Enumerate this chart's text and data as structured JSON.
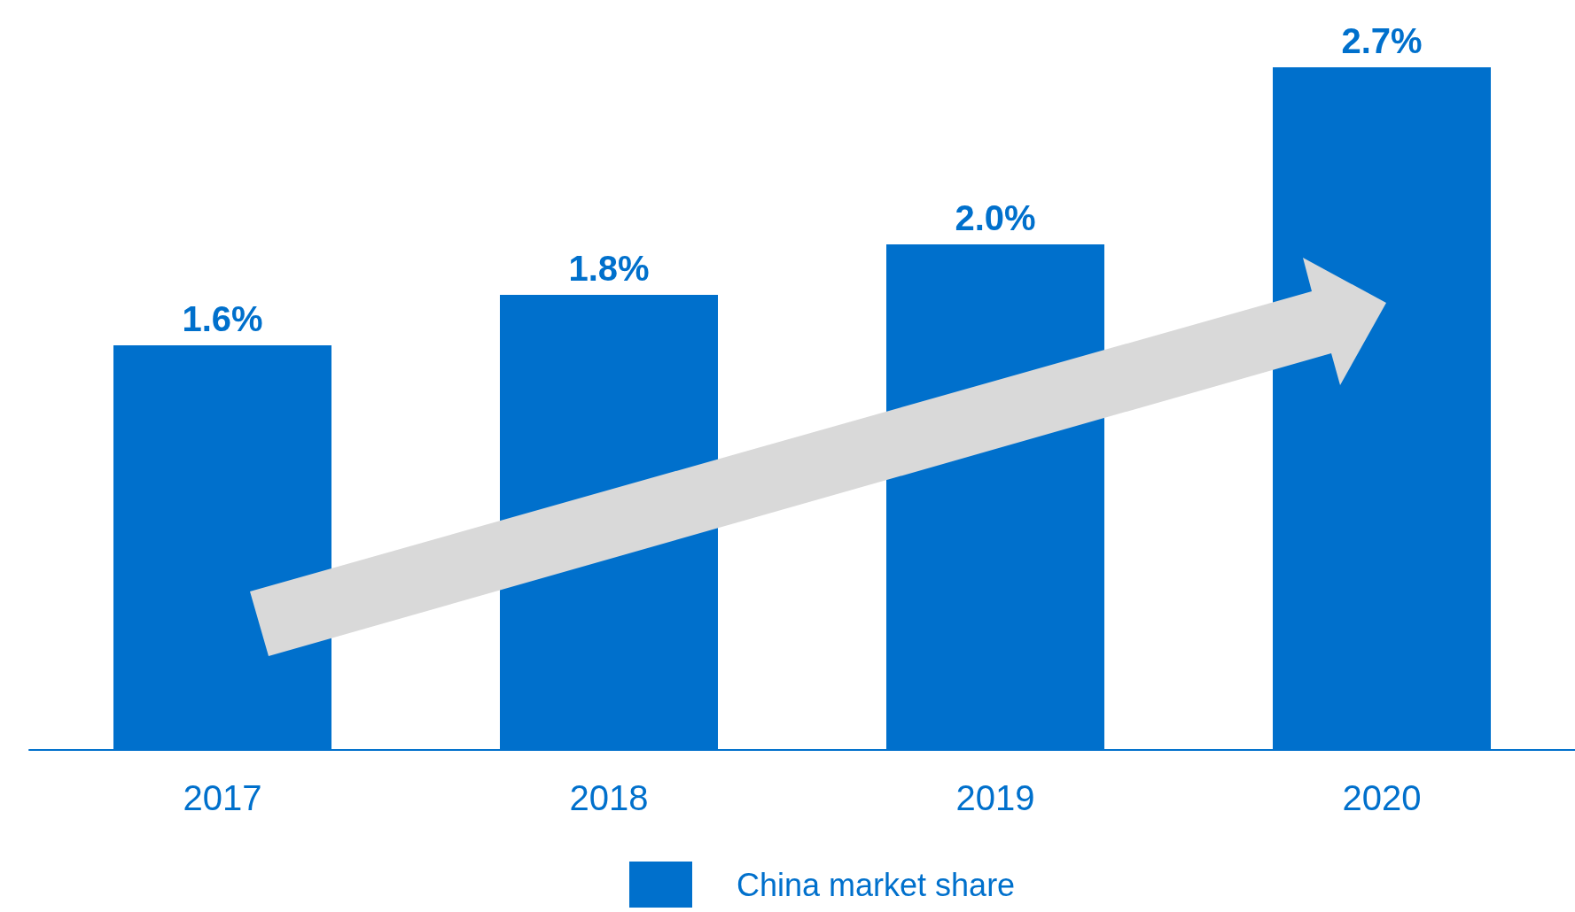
{
  "chart_data": {
    "type": "bar",
    "categories": [
      "2017",
      "2018",
      "2019",
      "2020"
    ],
    "series": [
      {
        "name": "China market share",
        "color": "#0070cc",
        "values": [
          1.6,
          1.8,
          2.0,
          2.7
        ],
        "value_labels": [
          "1.6%",
          "1.8%",
          "2.0%",
          "2.7%"
        ]
      }
    ],
    "legend": "bottom"
  }
}
